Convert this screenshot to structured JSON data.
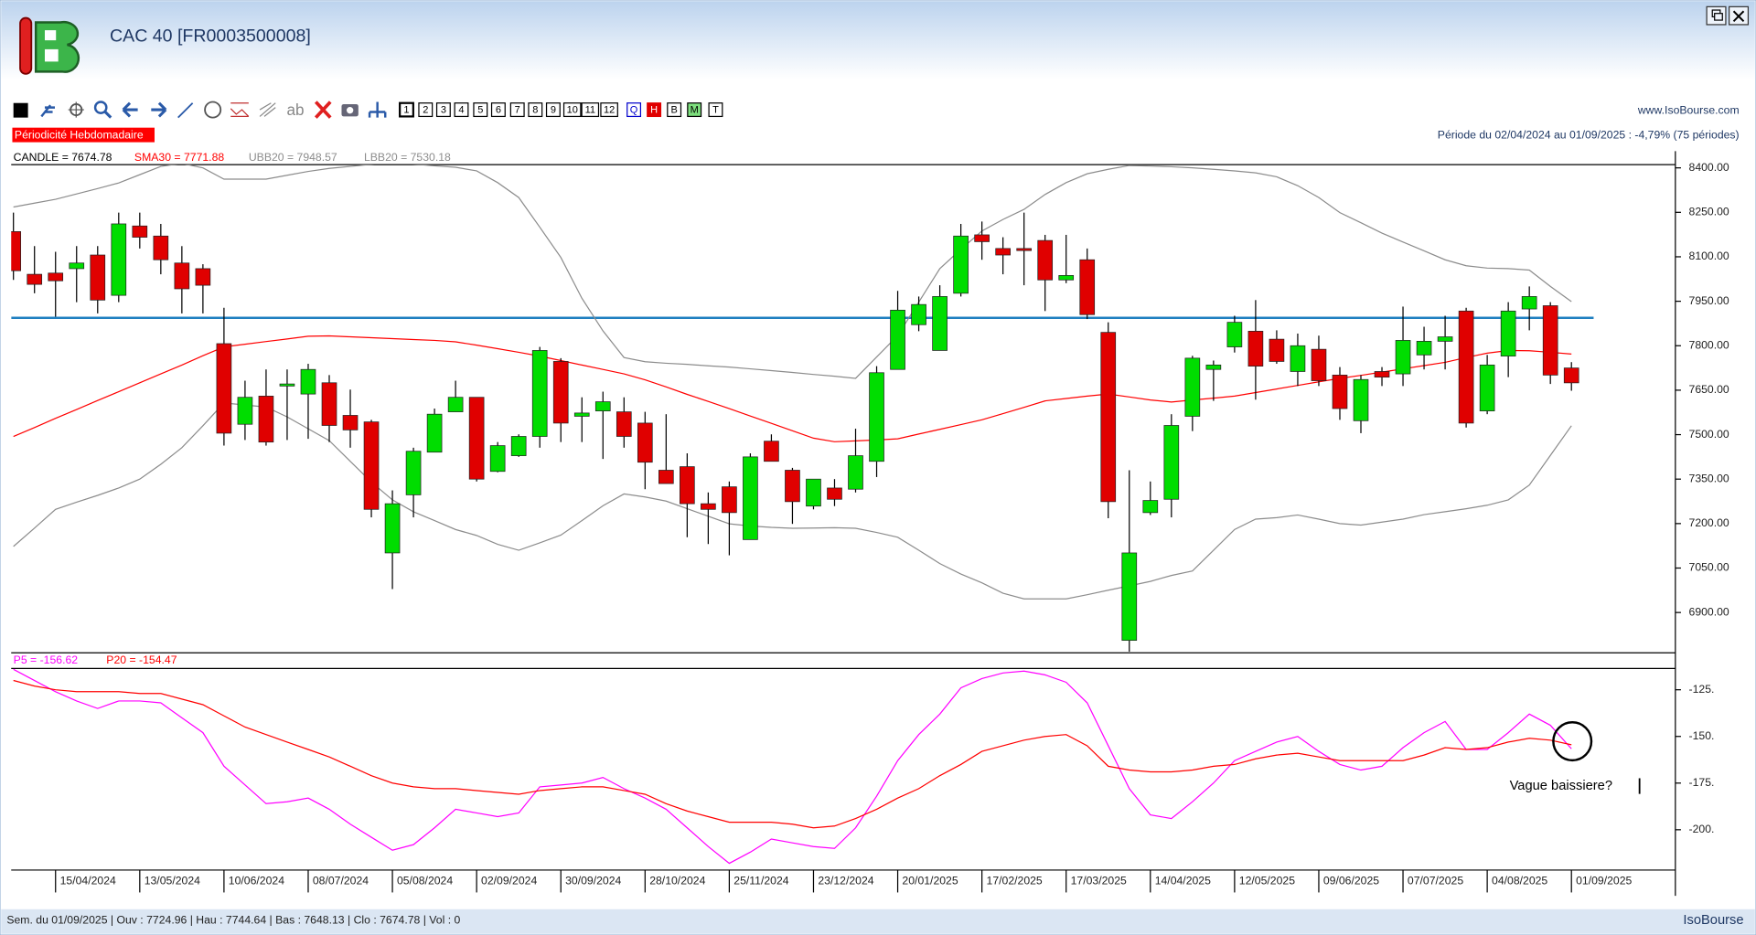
{
  "window": {
    "title": "CAC 40 [FR0003500008]",
    "site": "www.IsoBourse.com",
    "periodicity": "Périodicité Hebdomadaire",
    "period_summary": "Période du 02/04/2024 au 01/09/2025 : -4,79% (75 périodes)",
    "toolbar": {
      "text_tool": "ab",
      "periods": [
        "1",
        "2",
        "3",
        "4",
        "5",
        "6",
        "7",
        "8",
        "9",
        "10",
        "11",
        "12"
      ],
      "modes": [
        "Q",
        "H",
        "B",
        "M",
        "T"
      ]
    },
    "status": "Sem. du 01/09/2025 | Ouv : 7724.96 | Hau : 7744.64 | Bas : 7648.13 | Clo : 7674.78 | Vol : 0",
    "brand": "IsoBourse"
  },
  "chart_data": [
    {
      "type": "candlestick",
      "candles": {
        "name": "CANDLE = 7674.78",
        "legend_color": "#000000",
        "up_color": "#00dd00",
        "down_color": "#e00000",
        "open": [
          8185,
          8041,
          8045,
          8060,
          8106,
          7970,
          8204,
          8170,
          8079,
          8060,
          7807,
          7535,
          7630,
          7664,
          7637,
          7675,
          7565,
          7543,
          7101,
          7297,
          7441,
          7577,
          7626,
          7376,
          7429,
          7494,
          7747,
          7562,
          7580,
          7577,
          7539,
          7380,
          7392,
          7267,
          7324,
          7146,
          7478,
          7380,
          7259,
          7320,
          7316,
          7410,
          7720,
          7871,
          7784,
          7977,
          8174,
          8128,
          8128,
          8155,
          8022,
          8090,
          7845,
          6806,
          7237,
          7282,
          7562,
          7720,
          7796,
          7849,
          7822,
          7713,
          7788,
          7701,
          7547,
          7713,
          7705,
          7769,
          7815,
          7917,
          7580,
          7765,
          7924,
          7935,
          7724.96
        ],
        "high": [
          8249,
          8136,
          8117,
          8136,
          8136,
          8249,
          8249,
          8211,
          8136,
          8075,
          7928,
          7682,
          7720,
          7720,
          7739,
          7701,
          7652,
          7550,
          7312,
          7456,
          7588,
          7682,
          7626,
          7475,
          7501,
          7796,
          7758,
          7626,
          7645,
          7626,
          7577,
          7569,
          7437,
          7305,
          7342,
          7437,
          7501,
          7388,
          7350,
          7350,
          7520,
          7731,
          7985,
          7966,
          8004,
          8211,
          8219,
          8166,
          8249,
          8174,
          8174,
          8128,
          7879,
          7380,
          7342,
          7569,
          7766,
          7750,
          7901,
          7954,
          7852,
          7841,
          7834,
          7728,
          7701,
          7728,
          7932,
          7864,
          7901,
          7928,
          7769,
          7947,
          8000,
          7947,
          7744.64
        ],
        "low": [
          8022,
          7977,
          7898,
          7947,
          7909,
          7947,
          8128,
          8041,
          7909,
          7909,
          7463,
          7482,
          7463,
          7482,
          7486,
          7475,
          7456,
          7221,
          6979,
          7221,
          7441,
          7577,
          7342,
          7373,
          7425,
          7456,
          7475,
          7475,
          7418,
          7456,
          7316,
          7335,
          7154,
          7131,
          7093,
          7146,
          7410,
          7199,
          7248,
          7259,
          7305,
          7357,
          7720,
          7849,
          7784,
          7966,
          8090,
          8041,
          8004,
          7917,
          8011,
          7890,
          7218,
          6768,
          7229,
          7221,
          7512,
          7614,
          7777,
          7618,
          7739,
          7664,
          7664,
          7550,
          7505,
          7664,
          7664,
          7720,
          7720,
          7524,
          7569,
          7694,
          7852,
          7671,
          7648.13
        ],
        "close": [
          8053,
          8007,
          8019,
          8079,
          7954,
          8211,
          8166,
          8090,
          7992,
          8004,
          7505,
          7626,
          7475,
          7671,
          7720,
          7531,
          7516,
          7248,
          7267,
          7444,
          7569,
          7626,
          7350,
          7463,
          7494,
          7784,
          7539,
          7573,
          7611,
          7494,
          7407,
          7335,
          7267,
          7248,
          7237,
          7425,
          7410,
          7274,
          7350,
          7282,
          7429,
          7709,
          7920,
          7939,
          7966,
          8170,
          8151,
          8106,
          8121,
          8022,
          8037,
          7905,
          7274,
          7101,
          7278,
          7531,
          7758,
          7735,
          7879,
          7731,
          7747,
          7800,
          7682,
          7588,
          7686,
          7694,
          7818,
          7815,
          7830,
          7539,
          7735,
          7917,
          7966,
          7701,
          7674.78
        ]
      },
      "series": [
        {
          "name": "SMA30 = 7771.88",
          "color": "#ff0000",
          "values": [
            7494,
            7524,
            7555,
            7585,
            7615,
            7645,
            7675,
            7705,
            7735,
            7766,
            7796,
            7805,
            7814,
            7823,
            7832,
            7833,
            7830,
            7827,
            7824,
            7821,
            7818,
            7813,
            7802,
            7790,
            7778,
            7765,
            7750,
            7735,
            7720,
            7705,
            7685,
            7661,
            7636,
            7612,
            7588,
            7563,
            7538,
            7513,
            7488,
            7476,
            7479,
            7482,
            7486,
            7502,
            7518,
            7534,
            7550,
            7571,
            7592,
            7614,
            7622,
            7630,
            7637,
            7627,
            7617,
            7610,
            7617,
            7623,
            7630,
            7642,
            7654,
            7666,
            7678,
            7690,
            7700,
            7711,
            7722,
            7733,
            7744,
            7760,
            7775,
            7784,
            7783,
            7778,
            7771.88
          ]
        },
        {
          "name": "UBB20 = 7948.57",
          "color": "#8c8c8c",
          "values": [
            8268,
            8281,
            8294,
            8312,
            8330,
            8349,
            8377,
            8405,
            8415,
            8400,
            8362,
            8362,
            8362,
            8375,
            8388,
            8398,
            8405,
            8412,
            8419,
            8413,
            8407,
            8402,
            8390,
            8350,
            8300,
            8200,
            8098,
            7960,
            7850,
            7760,
            7746,
            7741,
            7737,
            7732,
            7728,
            7722,
            7716,
            7710,
            7703,
            7697,
            7690,
            7762,
            7834,
            7947,
            8060,
            8125,
            8187,
            8226,
            8260,
            8310,
            8350,
            8380,
            8395,
            8408,
            8406,
            8404,
            8400,
            8395,
            8390,
            8383,
            8370,
            8340,
            8300,
            8249,
            8215,
            8180,
            8150,
            8120,
            8090,
            8070,
            8062,
            8060,
            8055,
            8000,
            7948.57
          ]
        },
        {
          "name": "LBB20 = 7530.18",
          "color": "#8c8c8c",
          "values": [
            7123,
            7185,
            7248,
            7272,
            7295,
            7320,
            7350,
            7400,
            7456,
            7530,
            7607,
            7600,
            7593,
            7560,
            7520,
            7480,
            7410,
            7340,
            7280,
            7240,
            7210,
            7180,
            7160,
            7130,
            7110,
            7135,
            7161,
            7210,
            7260,
            7300,
            7290,
            7276,
            7250,
            7225,
            7199,
            7192,
            7187,
            7184,
            7185,
            7186,
            7184,
            7170,
            7154,
            7110,
            7065,
            7030,
            7000,
            6965,
            6946,
            6946,
            6946,
            6960,
            6975,
            6990,
            7005,
            7025,
            7040,
            7110,
            7180,
            7215,
            7220,
            7229,
            7215,
            7200,
            7195,
            7205,
            7215,
            7230,
            7240,
            7250,
            7262,
            7280,
            7330,
            7430,
            7530.18
          ]
        }
      ],
      "reference_line": {
        "value": 7894,
        "color": "#1f7fc0"
      },
      "ylim": [
        6764,
        8411
      ],
      "yticks": [
        {
          "value": 6900,
          "label": "6900.00"
        },
        {
          "value": 7050,
          "label": "7050.00"
        },
        {
          "value": 7200,
          "label": "7200.00"
        },
        {
          "value": 7350,
          "label": "7350.00"
        },
        {
          "value": 7500,
          "label": "7500.00"
        },
        {
          "value": 7650,
          "label": "7650.00"
        },
        {
          "value": 7800,
          "label": "7800.00"
        },
        {
          "value": 7950,
          "label": "7950.00"
        },
        {
          "value": 8100,
          "label": "8100.00"
        },
        {
          "value": 8250,
          "label": "8250.00"
        },
        {
          "value": 8400,
          "label": "8400.00"
        }
      ],
      "grid": false
    },
    {
      "type": "line",
      "categories": [
        null,
        null,
        "15/04/2024",
        null,
        null,
        null,
        "13/05/2024",
        null,
        null,
        null,
        "10/06/2024",
        null,
        null,
        null,
        "08/07/2024",
        null,
        null,
        null,
        "05/08/2024",
        null,
        null,
        null,
        "02/09/2024",
        null,
        null,
        null,
        "30/09/2024",
        null,
        null,
        null,
        "28/10/2024",
        null,
        null,
        null,
        "25/11/2024",
        null,
        null,
        null,
        "23/12/2024",
        null,
        null,
        null,
        "20/01/2025",
        null,
        null,
        null,
        "17/02/2025",
        null,
        null,
        null,
        "17/03/2025",
        null,
        null,
        null,
        "14/04/2025",
        null,
        null,
        null,
        "12/05/2025",
        null,
        null,
        null,
        "09/06/2025",
        null,
        null,
        null,
        "07/07/2025",
        null,
        null,
        null,
        "04/08/2025",
        null,
        null,
        null,
        "01/09/2025"
      ],
      "series": [
        {
          "name": "P5 = -156.62",
          "color": "#ff00ff",
          "values": [
            -114,
            -120,
            -126,
            -131,
            -135,
            -131,
            -131,
            -132,
            -140,
            -148,
            -166,
            -176,
            -186,
            -185,
            -183,
            -189,
            -197,
            -204,
            -211,
            -208,
            -199,
            -189,
            -191,
            -193,
            -191,
            -177,
            -176,
            -175,
            -172,
            -178,
            -183,
            -189,
            -199,
            -209,
            -218,
            -212,
            -205,
            -207,
            -209,
            -210,
            -199,
            -182,
            -163,
            -149,
            -138,
            -124,
            -119,
            -116,
            -115,
            -117,
            -121,
            -132,
            -155,
            -178,
            -192,
            -194,
            -185,
            -175,
            -163,
            -158,
            -153,
            -150,
            -158,
            -165,
            -168,
            -166,
            -156,
            -148,
            -142,
            -157,
            -157,
            -148,
            -138,
            -144,
            -156.62
          ]
        },
        {
          "name": "P20 = -154.47",
          "color": "#ff0000",
          "values": [
            -120,
            -123,
            -125,
            -126,
            -126,
            -126,
            -127,
            -127,
            -130,
            -133,
            -139,
            -145,
            -149,
            -153,
            -157,
            -161,
            -166,
            -171,
            -175,
            -177,
            -178,
            -178,
            -179,
            -180,
            -181,
            -179,
            -178,
            -177,
            -177,
            -179,
            -181,
            -186,
            -190,
            -193,
            -196,
            -196,
            -196,
            -197,
            -199,
            -198,
            -194,
            -189,
            -183,
            -178,
            -171,
            -165,
            -158,
            -155,
            -152,
            -150,
            -149,
            -155,
            -166,
            -168,
            -169,
            -169,
            -168,
            -166,
            -165,
            -162,
            -160,
            -159,
            -161,
            -163,
            -163,
            -163,
            -163,
            -160,
            -156,
            -157,
            -156,
            -153,
            -151,
            -152,
            -154.47
          ]
        }
      ],
      "annotation": "Vague baissiere?",
      "ylim": [
        -221.6,
        -113.6
      ],
      "yticks": [
        {
          "value": -200,
          "label": "-200."
        },
        {
          "value": -175,
          "label": "-175."
        },
        {
          "value": -150,
          "label": "-150."
        },
        {
          "value": -125,
          "label": "-125."
        }
      ],
      "grid": false
    }
  ]
}
